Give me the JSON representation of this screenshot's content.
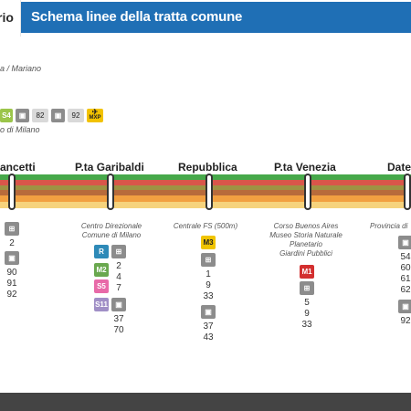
{
  "header": {
    "active_tab": "rio",
    "title": "Schema linee della tratta comune"
  },
  "subline": "a / Mariano",
  "legend": {
    "items": [
      {
        "label": "S4",
        "color": "#9bc54a"
      },
      {
        "label": "",
        "icon": "bus-icon"
      },
      {
        "label": "82"
      },
      {
        "label": "",
        "icon": "bus-icon"
      },
      {
        "label": "92"
      },
      {
        "label": "MXP",
        "color": "#f2c200",
        "icon": "airplane-icon"
      }
    ],
    "note": "o di Milano"
  },
  "colors": {
    "title_bar": "#1f6fb5",
    "band_green": "#46a84a",
    "band_red": "#d9564a",
    "band_olive": "#9f9243",
    "band_brown": "#b86b3b",
    "band_orange": "#f2a041",
    "band_yellow": "#f6d37d",
    "m1": "#d32f2f",
    "m2": "#6aa84f",
    "m3": "#f0c400",
    "s5": "#e86aa8",
    "s11": "#a08fc6"
  },
  "stations": [
    {
      "name": "ancetti"
    },
    {
      "name": "P.ta Garibaldi"
    },
    {
      "name": "Repubblica"
    },
    {
      "name": "P.ta Venezia"
    },
    {
      "name": "Date"
    }
  ],
  "notes": {
    "garibaldi": [
      "Centro Direzionale",
      "Comune di Milano"
    ],
    "repubblica": [
      "Centrale FS (500m)"
    ],
    "venezia": [
      "Corso Buenos Aires",
      "Museo Storia Naturale",
      "Planetario",
      "Giardini Pubblici"
    ],
    "date": [
      "Provincia di"
    ]
  },
  "connections": {
    "left_tram": [
      "2"
    ],
    "left_bus": [
      "90",
      "91",
      "92"
    ],
    "garibaldi_rail": [
      "2",
      "4",
      "7"
    ],
    "garibaldi_bus": [
      "37",
      "70"
    ],
    "garibaldi_labels": [
      "R",
      "M2",
      "S5",
      "S11"
    ],
    "repubblica_metro": "M3",
    "repubblica_tram": [
      "1",
      "9",
      "33"
    ],
    "repubblica_bus": [
      "37",
      "43"
    ],
    "venezia_metro": "M1",
    "venezia_tram": [
      "5",
      "9",
      "33"
    ],
    "date_bus": [
      "54",
      "60",
      "61",
      "62"
    ],
    "date_bus2": [
      "92"
    ]
  }
}
